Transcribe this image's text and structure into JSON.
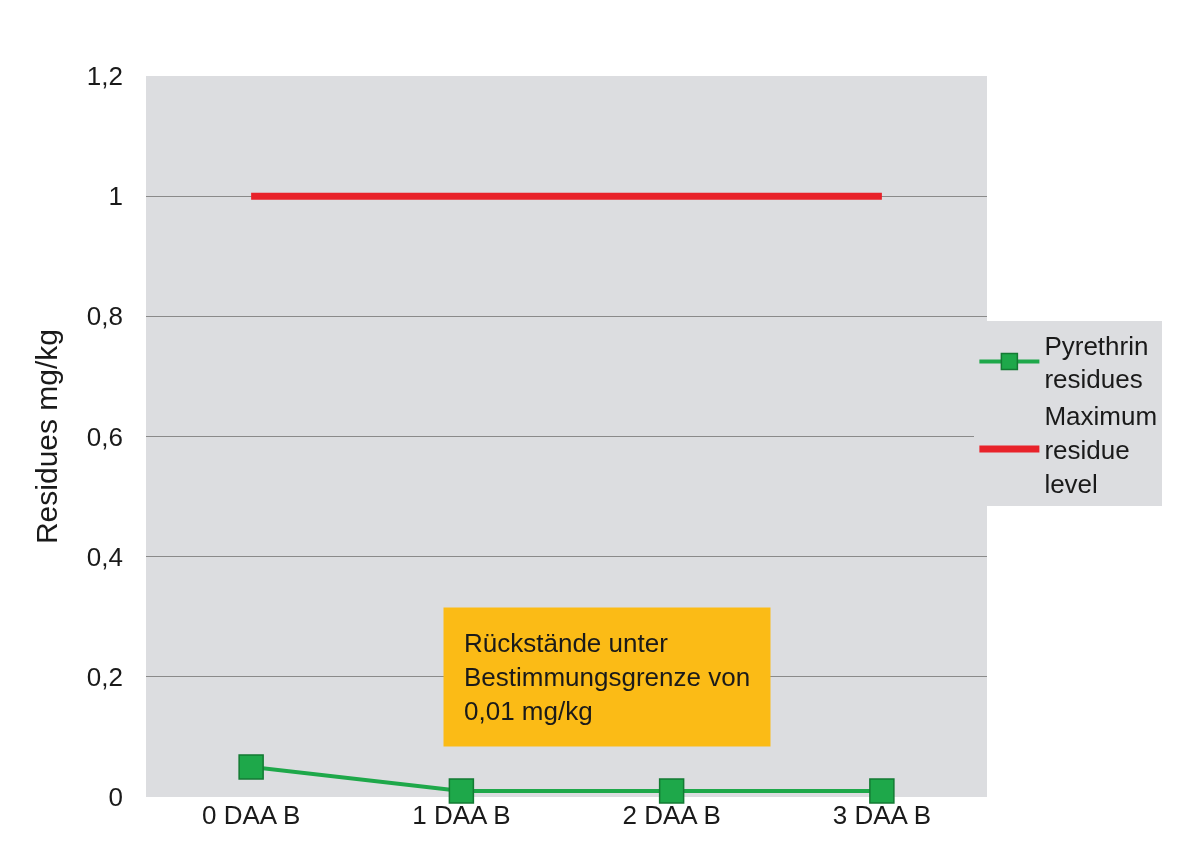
{
  "chart_data": {
    "type": "line",
    "ylabel": "Residues mg/kg",
    "categories": [
      "0 DAA B",
      "1 DAA B",
      "2 DAA B",
      "3 DAA B"
    ],
    "series": [
      {
        "name": "Pyrethrin residues",
        "color": "#1ea84a",
        "marker": "square",
        "values": [
          0.05,
          0.01,
          0.01,
          0.01
        ]
      },
      {
        "name": "Maximum residue level",
        "color": "#e8222a",
        "marker": "none",
        "values": [
          1,
          1,
          1,
          1
        ]
      }
    ],
    "ylim": [
      0,
      1.2
    ],
    "yticks": [
      0,
      {
        "value": 0.2,
        "label": "0,2"
      },
      {
        "value": 0.4,
        "label": "0,4"
      },
      {
        "value": 0.6,
        "label": "0,6"
      },
      {
        "value": 0.8,
        "label": "0,8"
      },
      1,
      {
        "value": 1.2,
        "label": "1,2"
      }
    ],
    "grid": "y",
    "legend": "right",
    "annotations": [
      "Rückstände unter\nBestimmungsgrenze von\n0,01 mg/kg"
    ]
  }
}
